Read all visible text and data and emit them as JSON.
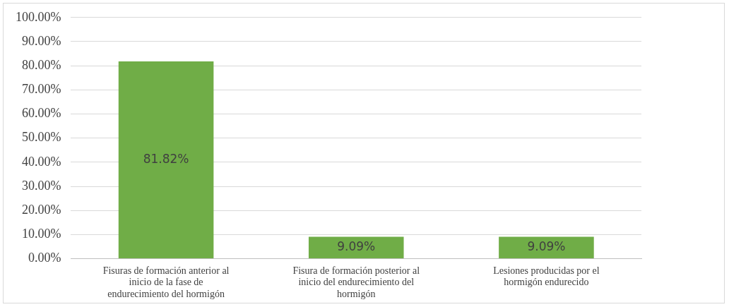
{
  "chart_data": {
    "type": "bar",
    "categories": [
      "Fisuras de formación anterior al inicio de la fase de endurecimiento del hormigón",
      "Fisura de formación posterior al inicio del endurecimiento del hormigón",
      "Lesiones producidas por el hormigón endurecido"
    ],
    "values": [
      81.82,
      9.09,
      9.09
    ],
    "value_labels": [
      "81.82%",
      "9.09%",
      "9.09%"
    ],
    "color": "#70ad47",
    "ylim": [
      0,
      100
    ],
    "yticks": [
      {
        "value": 0,
        "label": "0.00%"
      },
      {
        "value": 10,
        "label": "10.00%"
      },
      {
        "value": 20,
        "label": "20.00%"
      },
      {
        "value": 30,
        "label": "30.00%"
      },
      {
        "value": 40,
        "label": "40.00%"
      },
      {
        "value": 50,
        "label": "50.00%"
      },
      {
        "value": 60,
        "label": "60.00%"
      },
      {
        "value": 70,
        "label": "70.00%"
      },
      {
        "value": 80,
        "label": "80.00%"
      },
      {
        "value": 90,
        "label": "90.00%"
      },
      {
        "value": 100,
        "label": "100.00%"
      }
    ],
    "grid": "y",
    "legend": false
  }
}
